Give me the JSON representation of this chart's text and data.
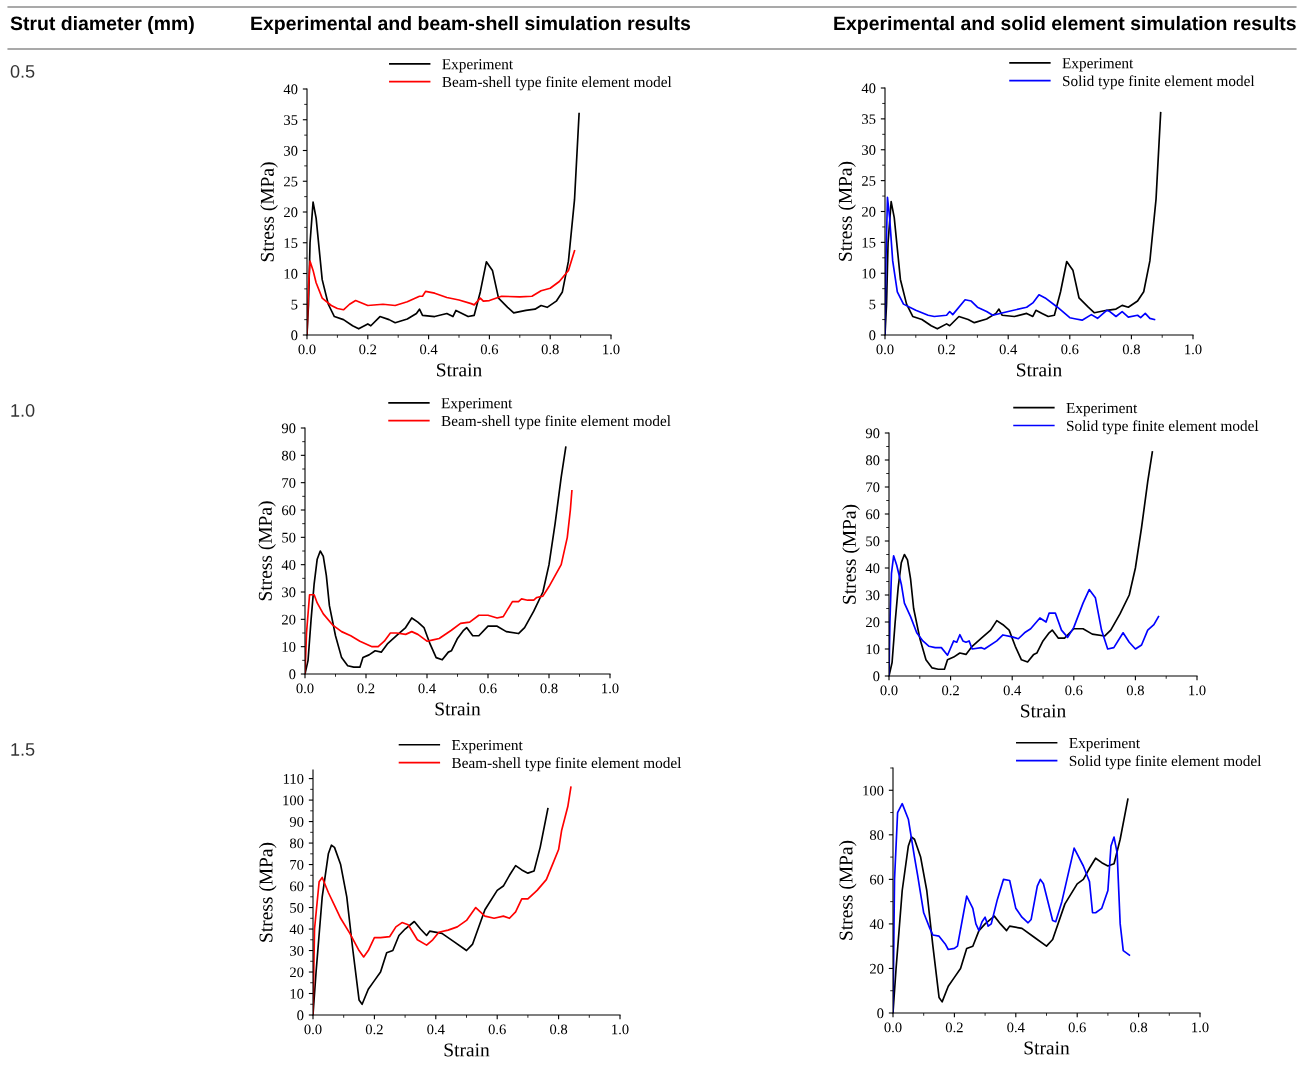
{
  "chart_data": [
    {
      "type": "line",
      "title": "Experimental and beam-shell simulation results",
      "annotations": [
        "Strut diameter (mm)",
        "0.5"
      ],
      "xlabel": "Strain",
      "ylabel": "Stress (MPa)",
      "xlim": [
        0,
        1.0
      ],
      "ylim": [
        0,
        40
      ],
      "xticks": [
        {
          "value": 0,
          "label": "0.0"
        },
        {
          "value": 0.2,
          "label": "0.2"
        },
        {
          "value": 0.4,
          "label": "0.4"
        },
        {
          "value": 0.6,
          "label": "0.6"
        },
        {
          "value": 0.8,
          "label": "0.8"
        },
        {
          "value": 1.0,
          "label": "1.0"
        }
      ],
      "yticks": [
        0,
        5,
        10,
        15,
        20,
        25,
        30,
        35,
        40
      ],
      "legend": "top right",
      "grid": false,
      "series": [
        {
          "name": "Experiment",
          "color": "#000000",
          "x": [
            0,
            0.005,
            0.01,
            0.02,
            0.03,
            0.04,
            0.05,
            0.07,
            0.09,
            0.12,
            0.15,
            0.17,
            0.2,
            0.21,
            0.24,
            0.27,
            0.29,
            0.33,
            0.36,
            0.37,
            0.38,
            0.42,
            0.46,
            0.48,
            0.49,
            0.51,
            0.53,
            0.55,
            0.57,
            0.59,
            0.61,
            0.63,
            0.66,
            0.68,
            0.72,
            0.75,
            0.77,
            0.79,
            0.82,
            0.84,
            0.86,
            0.88,
            0.895
          ],
          "values": [
            0,
            5,
            15,
            21.6,
            19,
            14,
            9,
            5,
            3,
            2.5,
            1.5,
            1.0,
            1.8,
            1.5,
            3,
            2.5,
            2,
            2.6,
            3.5,
            4.2,
            3.2,
            3,
            3.5,
            3,
            4,
            3.5,
            3,
            3.2,
            7,
            11.9,
            10.5,
            6,
            4.5,
            3.6,
            4,
            4.2,
            4.8,
            4.5,
            5.5,
            7,
            12,
            22,
            36
          ]
        },
        {
          "name": "Beam-shell type finite element model",
          "color": "#ff0000",
          "x": [
            0,
            0.005,
            0.01,
            0.02,
            0.03,
            0.05,
            0.08,
            0.1,
            0.12,
            0.14,
            0.16,
            0.18,
            0.2,
            0.25,
            0.29,
            0.33,
            0.37,
            0.38,
            0.39,
            0.42,
            0.46,
            0.5,
            0.54,
            0.55,
            0.57,
            0.58,
            0.6,
            0.64,
            0.7,
            0.74,
            0.77,
            0.8,
            0.83,
            0.86,
            0.88
          ],
          "values": [
            0,
            8,
            12,
            10.5,
            8.5,
            6,
            4.8,
            4.3,
            4.1,
            5,
            5.6,
            5.2,
            4.8,
            5,
            4.8,
            5.4,
            6.3,
            6.3,
            7.1,
            6.8,
            6.1,
            5.7,
            5.1,
            4.9,
            6.0,
            5.5,
            5.6,
            6.3,
            6.2,
            6.3,
            7.2,
            7.6,
            8.7,
            10.5,
            13.7
          ]
        }
      ]
    },
    {
      "type": "line",
      "title": "Experimental and solid element simulation results",
      "xlabel": "Strain",
      "ylabel": "Stress (MPa)",
      "xlim": [
        0,
        1.0
      ],
      "ylim": [
        0,
        40
      ],
      "xticks": [
        {
          "value": 0,
          "label": "0.0"
        },
        {
          "value": 0.2,
          "label": "0.2"
        },
        {
          "value": 0.4,
          "label": "0.4"
        },
        {
          "value": 0.6,
          "label": "0.6"
        },
        {
          "value": 0.8,
          "label": "0.8"
        },
        {
          "value": 1.0,
          "label": "1.0"
        }
      ],
      "yticks": [
        0,
        5,
        10,
        15,
        20,
        25,
        30,
        35,
        40
      ],
      "legend": "top right",
      "grid": false,
      "series": [
        {
          "name": "Experiment",
          "color": "#000000",
          "x": [
            0,
            0.005,
            0.01,
            0.02,
            0.03,
            0.04,
            0.05,
            0.07,
            0.09,
            0.12,
            0.15,
            0.17,
            0.2,
            0.21,
            0.24,
            0.27,
            0.29,
            0.33,
            0.36,
            0.37,
            0.38,
            0.42,
            0.46,
            0.48,
            0.49,
            0.51,
            0.53,
            0.55,
            0.57,
            0.59,
            0.61,
            0.63,
            0.66,
            0.68,
            0.72,
            0.75,
            0.77,
            0.79,
            0.82,
            0.84,
            0.86,
            0.88,
            0.895
          ],
          "values": [
            0,
            5,
            15,
            21.6,
            19,
            14,
            9,
            5,
            3,
            2.5,
            1.5,
            1.0,
            1.8,
            1.5,
            3,
            2.5,
            2,
            2.6,
            3.5,
            4.2,
            3.2,
            3,
            3.5,
            3,
            4,
            3.5,
            3,
            3.2,
            7,
            11.9,
            10.5,
            6,
            4.5,
            3.6,
            4,
            4.2,
            4.8,
            4.5,
            5.5,
            7,
            12,
            22,
            36
          ]
        },
        {
          "name": "Solid type finite element model",
          "color": "#0000ff",
          "x": [
            0,
            0.003,
            0.008,
            0.015,
            0.025,
            0.04,
            0.06,
            0.1,
            0.14,
            0.16,
            0.2,
            0.21,
            0.22,
            0.26,
            0.28,
            0.3,
            0.33,
            0.35,
            0.4,
            0.46,
            0.48,
            0.5,
            0.52,
            0.56,
            0.6,
            0.62,
            0.64,
            0.67,
            0.69,
            0.72,
            0.73,
            0.75,
            0.77,
            0.79,
            0.82,
            0.83,
            0.845,
            0.86,
            0.875
          ],
          "values": [
            0,
            12,
            22.3,
            19,
            12,
            7,
            5,
            4,
            3.2,
            3,
            3.2,
            3.8,
            3.3,
            5.7,
            5.5,
            4.5,
            3.8,
            3.2,
            3.8,
            4.5,
            5.2,
            6.5,
            6,
            4.5,
            2.8,
            2.6,
            2.4,
            3.3,
            2.7,
            4.0,
            3.8,
            3.0,
            3.8,
            2.9,
            3.2,
            2.8,
            3.5,
            2.7,
            2.5
          ]
        }
      ]
    },
    {
      "type": "line",
      "annotations": [
        "1.0"
      ],
      "xlabel": "Strain",
      "ylabel": "Stress (MPa)",
      "xlim": [
        0,
        1.0
      ],
      "ylim": [
        0,
        90
      ],
      "xticks": [
        {
          "value": 0,
          "label": "0.0"
        },
        {
          "value": 0.2,
          "label": "0.2"
        },
        {
          "value": 0.4,
          "label": "0.4"
        },
        {
          "value": 0.6,
          "label": "0.6"
        },
        {
          "value": 0.8,
          "label": "0.8"
        },
        {
          "value": 1.0,
          "label": "1.0"
        }
      ],
      "yticks": [
        0,
        10,
        20,
        30,
        40,
        50,
        60,
        70,
        80,
        90
      ],
      "legend": "top right",
      "grid": false,
      "series": [
        {
          "name": "Experiment",
          "color": "#000000",
          "x": [
            0,
            0.01,
            0.02,
            0.03,
            0.04,
            0.05,
            0.06,
            0.07,
            0.08,
            0.1,
            0.12,
            0.14,
            0.16,
            0.18,
            0.19,
            0.21,
            0.23,
            0.25,
            0.27,
            0.3,
            0.33,
            0.35,
            0.37,
            0.39,
            0.41,
            0.43,
            0.45,
            0.47,
            0.48,
            0.5,
            0.52,
            0.53,
            0.55,
            0.57,
            0.6,
            0.63,
            0.66,
            0.7,
            0.72,
            0.75,
            0.78,
            0.8,
            0.82,
            0.84,
            0.855
          ],
          "values": [
            0,
            5,
            20,
            33,
            42,
            45,
            43,
            36,
            25,
            14,
            6,
            3,
            2.5,
            2.5,
            6,
            7,
            8.5,
            8,
            11,
            14,
            17,
            20.5,
            19,
            17,
            11,
            6,
            5.2,
            8,
            8.5,
            13,
            16,
            17,
            14,
            14,
            17.5,
            17.5,
            15.5,
            14.8,
            17,
            23,
            30,
            40,
            55,
            72,
            83
          ]
        },
        {
          "name": "Beam-shell type finite element model",
          "color": "#ff0000",
          "x": [
            0,
            0.005,
            0.015,
            0.03,
            0.04,
            0.06,
            0.09,
            0.12,
            0.15,
            0.18,
            0.22,
            0.24,
            0.26,
            0.28,
            0.3,
            0.33,
            0.35,
            0.37,
            0.4,
            0.42,
            0.44,
            0.48,
            0.51,
            0.54,
            0.57,
            0.6,
            0.63,
            0.65,
            0.68,
            0.7,
            0.71,
            0.73,
            0.75,
            0.76,
            0.78,
            0.8,
            0.82,
            0.84,
            0.86,
            0.87,
            0.875
          ],
          "values": [
            0,
            15,
            29,
            29,
            26,
            22,
            18,
            15.5,
            14,
            12,
            10,
            10,
            12,
            15,
            15,
            14.5,
            15.5,
            14.5,
            12,
            12.5,
            13,
            16,
            18.5,
            19,
            21.5,
            21.5,
            20.5,
            21,
            26.5,
            26.5,
            27.5,
            27,
            27,
            28,
            28.5,
            32,
            36,
            40,
            50,
            60,
            67
          ]
        }
      ]
    },
    {
      "type": "line",
      "xlabel": "Strain",
      "ylabel": "Stress (MPa)",
      "xlim": [
        0,
        1.0
      ],
      "ylim": [
        0,
        90
      ],
      "xticks": [
        {
          "value": 0,
          "label": "0.0"
        },
        {
          "value": 0.2,
          "label": "0.2"
        },
        {
          "value": 0.4,
          "label": "0.4"
        },
        {
          "value": 0.6,
          "label": "0.6"
        },
        {
          "value": 0.8,
          "label": "0.8"
        },
        {
          "value": 1.0,
          "label": "1.0"
        }
      ],
      "yticks": [
        0,
        10,
        20,
        30,
        40,
        50,
        60,
        70,
        80,
        90
      ],
      "legend": "top right",
      "grid": false,
      "series": [
        {
          "name": "Experiment",
          "color": "#000000",
          "x": [
            0,
            0.01,
            0.02,
            0.03,
            0.04,
            0.05,
            0.06,
            0.07,
            0.08,
            0.1,
            0.12,
            0.14,
            0.16,
            0.18,
            0.19,
            0.21,
            0.23,
            0.25,
            0.27,
            0.3,
            0.33,
            0.35,
            0.37,
            0.39,
            0.41,
            0.43,
            0.45,
            0.47,
            0.48,
            0.5,
            0.52,
            0.53,
            0.55,
            0.57,
            0.6,
            0.63,
            0.66,
            0.7,
            0.72,
            0.75,
            0.78,
            0.8,
            0.82,
            0.84,
            0.855
          ],
          "values": [
            0,
            5,
            20,
            33,
            42,
            45,
            43,
            36,
            25,
            14,
            6,
            3,
            2.5,
            2.5,
            6,
            7,
            8.5,
            8,
            11,
            14,
            17,
            20.5,
            19,
            17,
            11,
            6,
            5.2,
            8,
            8.5,
            13,
            16,
            17,
            14,
            14,
            17.5,
            17.5,
            15.5,
            14.8,
            17,
            23,
            30,
            40,
            55,
            72,
            83
          ]
        },
        {
          "name": "Solid type finite element model",
          "color": "#0000ff",
          "x": [
            0,
            0.003,
            0.008,
            0.015,
            0.025,
            0.04,
            0.05,
            0.07,
            0.09,
            0.11,
            0.13,
            0.15,
            0.17,
            0.19,
            0.21,
            0.22,
            0.23,
            0.24,
            0.25,
            0.26,
            0.27,
            0.3,
            0.31,
            0.35,
            0.37,
            0.4,
            0.42,
            0.44,
            0.46,
            0.49,
            0.51,
            0.52,
            0.54,
            0.56,
            0.58,
            0.6,
            0.63,
            0.65,
            0.67,
            0.69,
            0.71,
            0.73,
            0.76,
            0.78,
            0.8,
            0.82,
            0.84,
            0.86,
            0.875
          ],
          "values": [
            0,
            20,
            38,
            44.5,
            41,
            34,
            27,
            22,
            16,
            13,
            11,
            10.5,
            10.5,
            7.7,
            13,
            12.5,
            15.3,
            13,
            12.5,
            13,
            10,
            10.5,
            10,
            13,
            15.2,
            14.5,
            13.8,
            16,
            17.5,
            21.5,
            20,
            23.3,
            23.3,
            17,
            14.3,
            18,
            27,
            32,
            29,
            17,
            10,
            10.5,
            16,
            12.5,
            10,
            11.5,
            17,
            19,
            22
          ]
        }
      ]
    },
    {
      "type": "line",
      "annotations": [
        "1.5"
      ],
      "xlabel": "Strain",
      "ylabel": "Stress (MPa)",
      "xlim": [
        0,
        1.0
      ],
      "ylim": [
        0,
        114
      ],
      "xticks": [
        {
          "value": 0,
          "label": "0.0"
        },
        {
          "value": 0.2,
          "label": "0.2"
        },
        {
          "value": 0.4,
          "label": "0.4"
        },
        {
          "value": 0.6,
          "label": "0.6"
        },
        {
          "value": 0.8,
          "label": "0.8"
        },
        {
          "value": 1.0,
          "label": "1.0"
        }
      ],
      "yticks": [
        0,
        10,
        20,
        30,
        40,
        50,
        60,
        70,
        80,
        90,
        100,
        110
      ],
      "legend": "top right",
      "grid": false,
      "series": [
        {
          "name": "Experiment",
          "color": "#000000",
          "x": [
            0,
            0.01,
            0.03,
            0.05,
            0.06,
            0.07,
            0.09,
            0.11,
            0.13,
            0.15,
            0.16,
            0.18,
            0.2,
            0.22,
            0.24,
            0.26,
            0.28,
            0.3,
            0.33,
            0.35,
            0.37,
            0.38,
            0.42,
            0.46,
            0.5,
            0.52,
            0.56,
            0.6,
            0.62,
            0.64,
            0.66,
            0.68,
            0.7,
            0.72,
            0.74,
            0.765
          ],
          "values": [
            0,
            20,
            55,
            75,
            79,
            78,
            70,
            55,
            30,
            7,
            5,
            12,
            16,
            20,
            29,
            30,
            37,
            40,
            43.5,
            40,
            37,
            39,
            38,
            34,
            30,
            33,
            49,
            58,
            60,
            65,
            69.5,
            67.5,
            66,
            67,
            78,
            96
          ]
        },
        {
          "name": "Beam-shell type finite element model",
          "color": "#ff0000",
          "x": [
            0,
            0.005,
            0.02,
            0.03,
            0.05,
            0.07,
            0.09,
            0.12,
            0.15,
            0.165,
            0.18,
            0.2,
            0.22,
            0.25,
            0.27,
            0.29,
            0.31,
            0.34,
            0.37,
            0.39,
            0.41,
            0.44,
            0.47,
            0.5,
            0.53,
            0.56,
            0.59,
            0.62,
            0.64,
            0.66,
            0.68,
            0.7,
            0.73,
            0.76,
            0.78,
            0.8,
            0.81,
            0.83,
            0.84
          ],
          "values": [
            0,
            40,
            62,
            64,
            57,
            51,
            45,
            38,
            30,
            27,
            30,
            36,
            36,
            36.5,
            41,
            43,
            42,
            35,
            32.5,
            35,
            38.5,
            39.5,
            41,
            44,
            50,
            46,
            45,
            46,
            45,
            48,
            54,
            54,
            58,
            63,
            70,
            77,
            86,
            97,
            106
          ]
        }
      ]
    },
    {
      "type": "line",
      "xlabel": "Strain",
      "ylabel": "Stress (MPa)",
      "xlim": [
        0,
        1.0
      ],
      "ylim": [
        0,
        110
      ],
      "xticks": [
        {
          "value": 0,
          "label": "0.0"
        },
        {
          "value": 0.2,
          "label": "0.2"
        },
        {
          "value": 0.4,
          "label": "0.4"
        },
        {
          "value": 0.6,
          "label": "0.6"
        },
        {
          "value": 0.8,
          "label": "0.8"
        },
        {
          "value": 1.0,
          "label": "1.0"
        }
      ],
      "yticks": [
        0,
        20,
        40,
        60,
        80,
        100
      ],
      "legend": "top right",
      "grid": false,
      "series": [
        {
          "name": "Experiment",
          "color": "#000000",
          "x": [
            0,
            0.01,
            0.03,
            0.05,
            0.06,
            0.07,
            0.09,
            0.11,
            0.13,
            0.15,
            0.16,
            0.18,
            0.2,
            0.22,
            0.24,
            0.26,
            0.28,
            0.3,
            0.33,
            0.35,
            0.37,
            0.38,
            0.42,
            0.46,
            0.5,
            0.52,
            0.56,
            0.6,
            0.62,
            0.64,
            0.66,
            0.68,
            0.7,
            0.72,
            0.74,
            0.765
          ],
          "values": [
            0,
            20,
            55,
            75,
            79,
            78,
            70,
            55,
            30,
            7,
            5,
            12,
            16,
            20,
            29,
            30,
            37,
            40,
            43.5,
            40,
            37,
            39,
            38,
            34,
            30,
            33,
            49,
            58,
            60,
            65,
            69.5,
            67.5,
            66,
            67,
            78,
            96
          ]
        },
        {
          "name": "Solid type finite element model",
          "color": "#0000ff",
          "x": [
            0,
            0.005,
            0.015,
            0.03,
            0.05,
            0.07,
            0.08,
            0.1,
            0.12,
            0.13,
            0.15,
            0.17,
            0.18,
            0.2,
            0.21,
            0.23,
            0.24,
            0.26,
            0.27,
            0.28,
            0.29,
            0.3,
            0.31,
            0.32,
            0.34,
            0.36,
            0.38,
            0.4,
            0.42,
            0.44,
            0.45,
            0.47,
            0.48,
            0.49,
            0.52,
            0.53,
            0.55,
            0.57,
            0.59,
            0.62,
            0.64,
            0.65,
            0.66,
            0.68,
            0.7,
            0.71,
            0.72,
            0.73,
            0.74,
            0.75,
            0.77
          ],
          "values": [
            0,
            60,
            90,
            94,
            87,
            70,
            62,
            45,
            38,
            35,
            34.5,
            31,
            28.5,
            29,
            30,
            45,
            52.5,
            47,
            40,
            37,
            41,
            43,
            39,
            40,
            51,
            60,
            59.5,
            47,
            43,
            40.5,
            42,
            57,
            60,
            58,
            41.5,
            41,
            50,
            62,
            74,
            66,
            59,
            45,
            45,
            47,
            55,
            75,
            79,
            72,
            40,
            28,
            26
          ]
        }
      ]
    }
  ]
}
